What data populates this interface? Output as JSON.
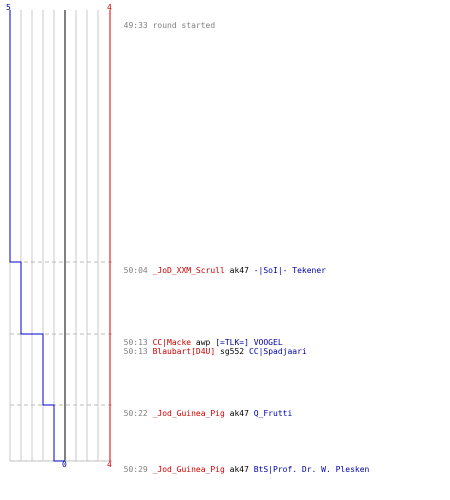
{
  "scores": {
    "left_top": "5",
    "right_top": "4",
    "bottom_zero": "0",
    "bottom_right": "4"
  },
  "colors": {
    "team_left": "#0000cc",
    "team_right": "#dd0000",
    "killer_red": "#cc0000",
    "victim_blue": "#0000aa",
    "grid": "#c8c8c8",
    "center": "#808080",
    "dash": "#bbbbbb"
  },
  "events": [
    {
      "time": "49:33",
      "text": "round started",
      "kind": "system"
    },
    {
      "time": "50:04",
      "killer": "_JoD_XXM_Scrull",
      "weapon": "ak47",
      "victim": "-|SoI|- Tekener",
      "kind": "kill"
    },
    {
      "time": "50:13",
      "killer": "CC|Macke",
      "weapon": "awp",
      "victim": "[=TLK=] VOOGEL",
      "kind": "kill"
    },
    {
      "time": "50:13",
      "killer": "Blaubart[D4U]",
      "weapon": "sg552",
      "victim": "CC|Spadjaari",
      "kind": "kill"
    },
    {
      "time": "50:22",
      "killer": "_Jod_Guinea_Pig",
      "weapon": "ak47",
      "victim": "Q_Frutti",
      "kind": "kill"
    },
    {
      "time": "50:29",
      "killer": "_Jod_Guinea_Pig",
      "weapon": "ak47",
      "victim": "BtS|Prof. Dr. W. Plesken",
      "kind": "kill"
    }
  ]
}
